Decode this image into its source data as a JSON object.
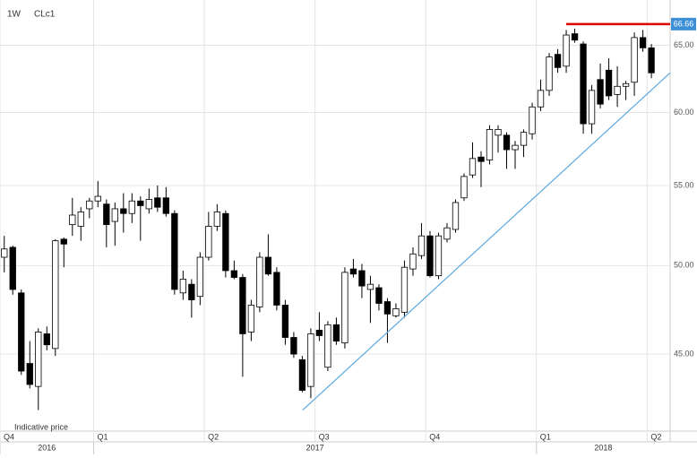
{
  "chart_data": {
    "type": "candlestick",
    "title": "CLc1",
    "interval": "1W",
    "note": "Indicative price",
    "log_scale": true,
    "grid": true,
    "up_color": "#ffffff",
    "down_color": "#000000",
    "ylim": [
      41.1,
      68.6
    ],
    "yticks": [
      {
        "value": 45,
        "label": "45.00"
      },
      {
        "value": 50,
        "label": "50.00"
      },
      {
        "value": 55,
        "label": "55.00"
      },
      {
        "value": 60,
        "label": "60.00"
      },
      {
        "value": 65,
        "label": "65.00"
      }
    ],
    "xlim": [
      -0.5,
      78.2
    ],
    "xticks": [
      {
        "value": -0.5,
        "label": "Q4"
      },
      {
        "value": 10.5,
        "label": "Q1"
      },
      {
        "value": 23.5,
        "label": "Q2"
      },
      {
        "value": 36.5,
        "label": "Q3"
      },
      {
        "value": 49.5,
        "label": "Q4"
      },
      {
        "value": 62.5,
        "label": "Q1"
      },
      {
        "value": 75.5,
        "label": "Q2"
      }
    ],
    "xgroups": [
      {
        "label": "2016",
        "from": -0.5,
        "to": 10.5
      },
      {
        "label": "2017",
        "from": 10.5,
        "to": 62.5
      },
      {
        "label": "2018",
        "from": 62.5,
        "to": 78.2
      }
    ],
    "open": [
      50.5,
      51.1,
      48.4,
      44.5,
      43.3,
      46.1,
      45.3,
      51.6,
      52.5,
      52.4,
      53.5,
      54.0,
      53.8,
      52.7,
      53.5,
      53.2,
      54.0,
      53.5,
      54.2,
      54.2,
      53.2,
      48.4,
      48.9,
      48.2,
      50.5,
      52.4,
      53.2,
      49.7,
      49.3,
      46.2,
      47.6,
      50.5,
      49.6,
      47.7,
      45.9,
      44.7,
      43.3,
      46.3,
      44.3,
      46.6,
      45.6,
      49.8,
      49.7,
      48.6,
      48.7,
      47.9,
      47.1,
      47.3,
      49.8,
      50.6,
      51.8,
      49.4,
      51.6,
      52.2,
      54.2,
      55.7,
      56.9,
      56.7,
      58.4,
      58.4,
      57.4,
      57.7,
      58.5,
      60.4,
      61.6,
      64.3,
      63.4,
      65.9,
      65.1,
      59.2,
      62.4,
      63.1,
      61.3,
      61.9,
      62.2,
      65.6,
      64.8
    ],
    "high": [
      51.8,
      51.2,
      48.6,
      45.7,
      46.4,
      46.5,
      51.6,
      51.7,
      54.2,
      53.6,
      54.2,
      55.3,
      54.1,
      53.9,
      54.5,
      54.5,
      54.3,
      54.8,
      55.0,
      54.9,
      53.4,
      49.7,
      49.2,
      50.8,
      53.3,
      53.8,
      53.4,
      50.3,
      49.5,
      48.0,
      50.8,
      51.9,
      49.9,
      48.0,
      46.2,
      44.9,
      46.4,
      47.3,
      46.8,
      47.0,
      49.9,
      50.4,
      50.1,
      49.4,
      48.9,
      48.1,
      47.8,
      50.3,
      51.1,
      52.6,
      52.1,
      52.0,
      52.6,
      54.1,
      55.8,
      57.9,
      57.3,
      59.1,
      59.1,
      58.6,
      58.0,
      58.8,
      60.7,
      62.4,
      64.4,
      64.7,
      66.2,
      66.3,
      65.3,
      62.0,
      63.6,
      64.0,
      63.4,
      62.3,
      66.0,
      66.2,
      65.1
    ],
    "low": [
      49.6,
      48.3,
      43.9,
      43.2,
      42.1,
      45.2,
      44.9,
      49.9,
      51.8,
      51.5,
      52.9,
      53.6,
      51.1,
      51.2,
      52.0,
      52.6,
      51.5,
      53.2,
      53.3,
      53.0,
      48.3,
      48.0,
      47.0,
      47.7,
      50.3,
      52.1,
      49.3,
      49.2,
      43.8,
      45.7,
      47.3,
      49.4,
      47.4,
      45.5,
      44.8,
      43.0,
      42.7,
      45.7,
      44.1,
      45.5,
      45.3,
      49.3,
      48.1,
      46.7,
      47.4,
      45.6,
      47.0,
      47.0,
      49.4,
      50.4,
      49.3,
      49.2,
      51.4,
      52.0,
      54.0,
      55.5,
      54.9,
      56.4,
      57.2,
      56.1,
      56.1,
      56.9,
      58.1,
      60.1,
      61.2,
      62.9,
      62.9,
      65.2,
      58.5,
      58.5,
      60.3,
      60.9,
      60.4,
      60.9,
      61.2,
      64.5,
      62.5
    ],
    "close": [
      51.0,
      48.6,
      44.1,
      43.4,
      46.2,
      45.5,
      51.5,
      51.3,
      53.1,
      53.3,
      54.0,
      54.3,
      52.5,
      53.5,
      53.2,
      54.0,
      53.7,
      54.1,
      53.6,
      53.2,
      48.6,
      49.2,
      48.0,
      50.5,
      52.4,
      53.3,
      49.7,
      49.3,
      46.1,
      47.7,
      50.5,
      49.5,
      47.7,
      45.9,
      45.0,
      43.1,
      46.1,
      46.0,
      46.6,
      45.7,
      49.6,
      49.5,
      48.8,
      48.9,
      47.8,
      47.2,
      47.5,
      49.9,
      50.7,
      51.8,
      49.4,
      51.8,
      52.3,
      53.9,
      55.6,
      56.8,
      56.6,
      58.8,
      58.8,
      57.4,
      57.7,
      58.6,
      60.4,
      61.6,
      64.1,
      63.3,
      65.8,
      65.4,
      59.2,
      61.6,
      60.6,
      61.2,
      61.9,
      62.1,
      65.6,
      64.8,
      62.9
    ],
    "level": {
      "value": 66.66,
      "label": "66.66",
      "from": 66,
      "color": "#e00000",
      "label_color": "#3d8fd6"
    },
    "trendline": {
      "start": [
        35.05,
        42.1
      ],
      "end": [
        78.2,
        62.9
      ],
      "color": "#5aa8e0"
    }
  }
}
